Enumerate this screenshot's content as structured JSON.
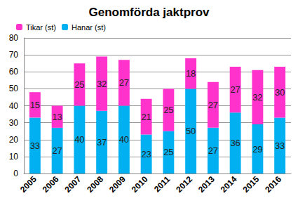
{
  "chart_data": {
    "type": "bar",
    "title": "Genomförda jaktprov",
    "categories": [
      "2005",
      "2006",
      "2007",
      "2008",
      "2009",
      "2010",
      "2011",
      "2012",
      "2013",
      "2014",
      "2015",
      "2016"
    ],
    "series": [
      {
        "name": "Hanar (st)",
        "color": "#00b0f0",
        "values": [
          33,
          27,
          40,
          37,
          40,
          23,
          25,
          50,
          27,
          36,
          29,
          33
        ]
      },
      {
        "name": "Tikar (st)",
        "color": "#ff33cc",
        "values": [
          15,
          13,
          25,
          32,
          27,
          21,
          25,
          18,
          27,
          27,
          32,
          30
        ]
      }
    ],
    "stacked": true,
    "data_labels": true,
    "grid": true,
    "legend": "top-left",
    "ylim": [
      0,
      80
    ],
    "yticks": [
      0,
      10,
      20,
      30,
      40,
      50,
      60,
      70,
      80
    ]
  }
}
